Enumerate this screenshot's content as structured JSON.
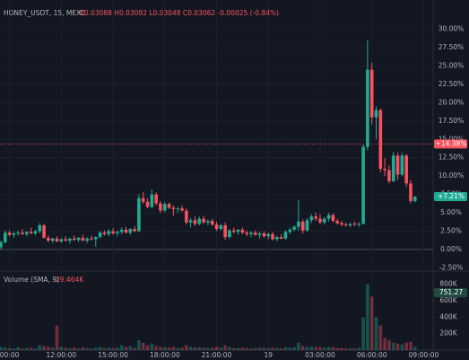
{
  "chart_data": {
    "type": "candlestick",
    "symbol": "HONEY_USDT, 15, MEXC",
    "ohlc_readout": "O0.03088 H0.03092 L0.03048 C0.03062 -0.00025 (-0.84%)",
    "volume_title": "Volume (SMA, 9)",
    "volume_sma": "29.464K",
    "up_color": "#22ab94",
    "down_color": "#f7525f",
    "candle_fields": [
      "open",
      "high",
      "low",
      "close",
      "volume"
    ],
    "candles": [
      [
        0.3,
        1.2,
        0,
        1.0,
        40
      ],
      [
        1.0,
        2.6,
        0.8,
        2.3,
        30
      ],
      [
        2.3,
        2.6,
        1.8,
        2.0,
        25
      ],
      [
        2.0,
        2.4,
        1.6,
        2.2,
        20
      ],
      [
        2.2,
        2.6,
        1.9,
        2.3,
        35
      ],
      [
        2.3,
        2.8,
        2.0,
        2.1,
        20
      ],
      [
        2.1,
        2.5,
        1.8,
        2.4,
        25
      ],
      [
        2.4,
        3.0,
        2.1,
        2.2,
        30
      ],
      [
        2.2,
        2.7,
        1.9,
        2.5,
        20
      ],
      [
        2.5,
        3.6,
        2.2,
        3.3,
        60
      ],
      [
        3.3,
        3.5,
        1.5,
        1.6,
        50
      ],
      [
        1.6,
        1.9,
        1.0,
        1.2,
        40
      ],
      [
        1.2,
        1.6,
        0.9,
        1.5,
        30
      ],
      [
        1.5,
        1.8,
        1.0,
        1.1,
        300
      ],
      [
        1.1,
        1.6,
        0.9,
        1.4,
        40
      ],
      [
        1.4,
        1.8,
        1.1,
        1.2,
        30
      ],
      [
        1.2,
        1.6,
        0.8,
        1.5,
        25
      ],
      [
        1.5,
        1.9,
        1.2,
        1.3,
        30
      ],
      [
        1.3,
        1.7,
        1.0,
        1.6,
        20
      ],
      [
        1.6,
        2.0,
        1.2,
        1.2,
        35
      ],
      [
        1.2,
        1.7,
        0.9,
        1.5,
        25
      ],
      [
        1.5,
        1.9,
        1.2,
        1.4,
        20
      ],
      [
        1.4,
        1.8,
        0.4,
        1.7,
        30
      ],
      [
        1.7,
        2.5,
        1.5,
        2.3,
        40
      ],
      [
        2.3,
        2.6,
        1.9,
        2.1,
        25
      ],
      [
        2.1,
        2.8,
        1.8,
        2.5,
        30
      ],
      [
        2.5,
        2.9,
        2.0,
        2.2,
        25
      ],
      [
        2.2,
        2.6,
        1.8,
        2.4,
        30
      ],
      [
        2.4,
        3.0,
        2.1,
        2.7,
        60
      ],
      [
        2.7,
        3.1,
        2.2,
        2.3,
        40
      ],
      [
        2.3,
        2.9,
        2.0,
        2.8,
        50
      ],
      [
        2.8,
        3.2,
        2.4,
        2.5,
        30
      ],
      [
        2.5,
        7.5,
        2.4,
        7.0,
        120
      ],
      [
        7.0,
        7.8,
        6.2,
        6.5,
        90
      ],
      [
        6.5,
        7.0,
        5.6,
        5.8,
        60
      ],
      [
        5.8,
        8.2,
        5.6,
        7.5,
        80
      ],
      [
        7.5,
        7.8,
        6.0,
        6.3,
        50
      ],
      [
        6.3,
        6.6,
        5.0,
        5.3,
        40
      ],
      [
        5.3,
        6.5,
        5.1,
        6.2,
        35
      ],
      [
        6.2,
        6.4,
        5.5,
        5.7,
        30
      ],
      [
        5.7,
        6.0,
        4.6,
        5.5,
        40
      ],
      [
        5.5,
        5.8,
        5.0,
        5.6,
        25
      ],
      [
        5.6,
        6.0,
        5.2,
        5.3,
        30
      ],
      [
        5.3,
        5.6,
        3.4,
        3.7,
        60
      ],
      [
        3.7,
        4.3,
        3.0,
        4.0,
        40
      ],
      [
        4.0,
        4.5,
        3.2,
        3.5,
        30
      ],
      [
        3.5,
        4.5,
        3.3,
        4.2,
        35
      ],
      [
        4.2,
        4.6,
        3.5,
        3.7,
        30
      ],
      [
        3.7,
        4.1,
        3.3,
        3.9,
        25
      ],
      [
        3.9,
        4.2,
        3.2,
        3.4,
        30
      ],
      [
        3.4,
        3.8,
        2.5,
        2.8,
        40
      ],
      [
        2.8,
        3.5,
        2.6,
        3.3,
        30
      ],
      [
        3.3,
        3.7,
        1.3,
        1.7,
        60
      ],
      [
        1.7,
        2.8,
        1.5,
        2.6,
        40
      ],
      [
        2.6,
        3.0,
        2.2,
        2.4,
        25
      ],
      [
        2.4,
        2.8,
        2.0,
        2.7,
        25
      ],
      [
        2.7,
        3.0,
        2.1,
        2.3,
        30
      ],
      [
        2.3,
        2.6,
        1.8,
        2.1,
        25
      ],
      [
        2.1,
        2.5,
        1.7,
        2.3,
        20
      ],
      [
        2.3,
        2.6,
        1.9,
        2.0,
        25
      ],
      [
        2.0,
        2.4,
        1.5,
        2.2,
        30
      ],
      [
        2.2,
        2.5,
        1.6,
        1.8,
        30
      ],
      [
        1.8,
        2.3,
        1.4,
        2.1,
        25
      ],
      [
        2.1,
        2.4,
        1.2,
        1.4,
        30
      ],
      [
        1.4,
        1.9,
        1.1,
        1.7,
        25
      ],
      [
        1.7,
        2.1,
        1.4,
        1.5,
        20
      ],
      [
        1.5,
        2.6,
        1.3,
        2.4,
        35
      ],
      [
        2.4,
        3.0,
        2.1,
        2.7,
        30
      ],
      [
        2.7,
        3.3,
        2.5,
        3.1,
        35
      ],
      [
        3.1,
        6.8,
        2.6,
        3.8,
        90
      ],
      [
        3.8,
        4.1,
        2.2,
        2.6,
        50
      ],
      [
        2.6,
        4.3,
        2.4,
        4.0,
        40
      ],
      [
        4.0,
        4.8,
        3.6,
        4.5,
        45
      ],
      [
        4.5,
        5.0,
        3.9,
        4.2,
        40
      ],
      [
        4.2,
        4.8,
        3.5,
        3.7,
        35
      ],
      [
        3.7,
        4.4,
        3.4,
        4.2,
        30
      ],
      [
        4.2,
        5.0,
        3.8,
        4.7,
        40
      ],
      [
        4.7,
        4.9,
        3.7,
        3.9,
        35
      ],
      [
        3.9,
        4.2,
        3.4,
        3.6,
        25
      ],
      [
        3.6,
        3.9,
        3.2,
        3.4,
        25
      ],
      [
        3.4,
        3.7,
        3.1,
        3.3,
        20
      ],
      [
        3.3,
        3.6,
        3.0,
        3.5,
        25
      ],
      [
        3.5,
        3.8,
        3.2,
        3.4,
        20
      ],
      [
        3.4,
        3.7,
        3.1,
        3.5,
        30
      ],
      [
        3.5,
        14.3,
        3.4,
        14.0,
        400
      ],
      [
        14.0,
        28.5,
        13.5,
        24.5,
        800
      ],
      [
        24.5,
        25.5,
        17.0,
        18.0,
        650
      ],
      [
        18.0,
        19.5,
        15.0,
        19.0,
        400
      ],
      [
        19.0,
        19.2,
        10.5,
        11.0,
        300
      ],
      [
        11.0,
        12.5,
        10.0,
        10.8,
        150
      ],
      [
        10.8,
        11.5,
        9.0,
        9.3,
        120
      ],
      [
        9.3,
        13.3,
        9.2,
        12.8,
        90
      ],
      [
        12.8,
        13.2,
        9.5,
        10.2,
        80
      ],
      [
        10.2,
        13.2,
        10.0,
        12.8,
        70
      ],
      [
        12.8,
        13.0,
        8.5,
        9.0,
        90
      ],
      [
        9.0,
        9.5,
        6.3,
        6.6,
        100
      ],
      [
        6.6,
        7.3,
        6.4,
        7.2,
        40
      ]
    ],
    "xlim": [
      -0.2,
      100.2
    ],
    "xticks": [
      {
        "value": 2,
        "label": "00:00"
      },
      {
        "value": 14,
        "label": "12:00:00"
      },
      {
        "value": 26,
        "label": "15:00:00"
      },
      {
        "value": 38,
        "label": "18:00:00"
      },
      {
        "value": 50,
        "label": "21:00:00"
      },
      {
        "value": 62,
        "label": "19"
      },
      {
        "value": 74,
        "label": "03:00:00"
      },
      {
        "value": 86,
        "label": "06:00:00"
      },
      {
        "value": 98,
        "label": "09:00:00"
      }
    ],
    "ylim": [
      -2.7,
      34
    ],
    "yticks": [
      {
        "value": 30,
        "label": "30.00%"
      },
      {
        "value": 27.5,
        "label": "27.50%"
      },
      {
        "value": 25,
        "label": "25.00%"
      },
      {
        "value": 22.5,
        "label": "22.50%"
      },
      {
        "value": 20,
        "label": "20.00%"
      },
      {
        "value": 17.5,
        "label": "17.50%"
      },
      {
        "value": 15,
        "label": "15.00%"
      },
      {
        "value": 12.5,
        "label": "12.50%"
      },
      {
        "value": 10,
        "label": "10.00%"
      },
      {
        "value": 7.5,
        "label": "7.50%"
      },
      {
        "value": 5,
        "label": "5.00%"
      },
      {
        "value": 2.5,
        "label": "2.50%"
      },
      {
        "value": 0,
        "label": "0.00%"
      },
      {
        "value": -2.5,
        "label": "-2.50%"
      }
    ],
    "price_markers": [
      {
        "value": 14.38,
        "label": "+14.38%",
        "color": "#f7525f",
        "line": true
      },
      {
        "value": 7.21,
        "label": "+7.21%",
        "color": "#22ab94",
        "line": false
      }
    ],
    "vlim": [
      0,
      960
    ],
    "vticks": [
      {
        "value": 800,
        "label": "800K"
      },
      {
        "value": 600,
        "label": "600K"
      },
      {
        "value": 400,
        "label": "400K"
      },
      {
        "value": 200,
        "label": "200K"
      }
    ],
    "volume_marker": {
      "value": 751.27,
      "label": "751.27",
      "color": "#1f4a40"
    }
  }
}
